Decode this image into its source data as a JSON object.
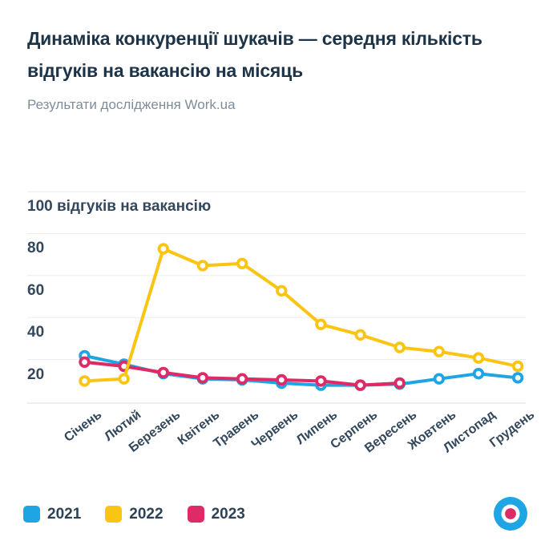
{
  "header": {
    "title": "Динаміка конкуренції шукачів — середня кількість відгуків на вакансію на місяць",
    "subtitle": "Результати дослідження Work.ua"
  },
  "chart_data": {
    "type": "line",
    "title": "Динаміка конкуренції шукачів — середня кількість відгуків на вакансію на місяць",
    "categories": [
      "Січень",
      "Лютий",
      "Березень",
      "Квітень",
      "Травень",
      "Червень",
      "Липень",
      "Серпень",
      "Вересень",
      "Жовтень",
      "Листопад",
      "Грудень"
    ],
    "y_axis": {
      "unit_label": "відгуків на вакансію",
      "ticks": [
        {
          "value": 100,
          "label": "100 відгуків на вакансію"
        },
        {
          "value": 80,
          "label": "80"
        },
        {
          "value": 60,
          "label": "60"
        },
        {
          "value": 40,
          "label": "40"
        },
        {
          "value": 20,
          "label": "20"
        }
      ],
      "ylim": [
        0,
        100
      ],
      "grid": true
    },
    "series": [
      {
        "name": "2021",
        "color": "#1FA4E4",
        "values": [
          29,
          25,
          20.5,
          18,
          17.5,
          16,
          15,
          15,
          15.5,
          18,
          20.5,
          18.5
        ]
      },
      {
        "name": "2022",
        "color": "#FAC512",
        "values": [
          17,
          18,
          80,
          72,
          73,
          60,
          44,
          39,
          33,
          31,
          28,
          24
        ]
      },
      {
        "name": "2023",
        "color": "#DE2A67",
        "values": [
          26,
          24,
          21,
          18.5,
          18,
          17.5,
          17,
          15,
          16,
          null,
          null,
          null
        ]
      }
    ],
    "legend": [
      "2021",
      "2022",
      "2023"
    ],
    "legend_position": "bottom-left"
  },
  "logo": {
    "label": "work-ua-logo",
    "outer_color": "#1FA4E4",
    "inner_color": "#FFFFFF",
    "center_color": "#DE2A67"
  },
  "colors": {
    "background": "#FFFFFF",
    "title": "#1C3348",
    "subtitle": "#7E8D9C",
    "axis_text": "#33485C",
    "gridline": "#EAEDF1",
    "axis_line": "#D9DEE3"
  }
}
